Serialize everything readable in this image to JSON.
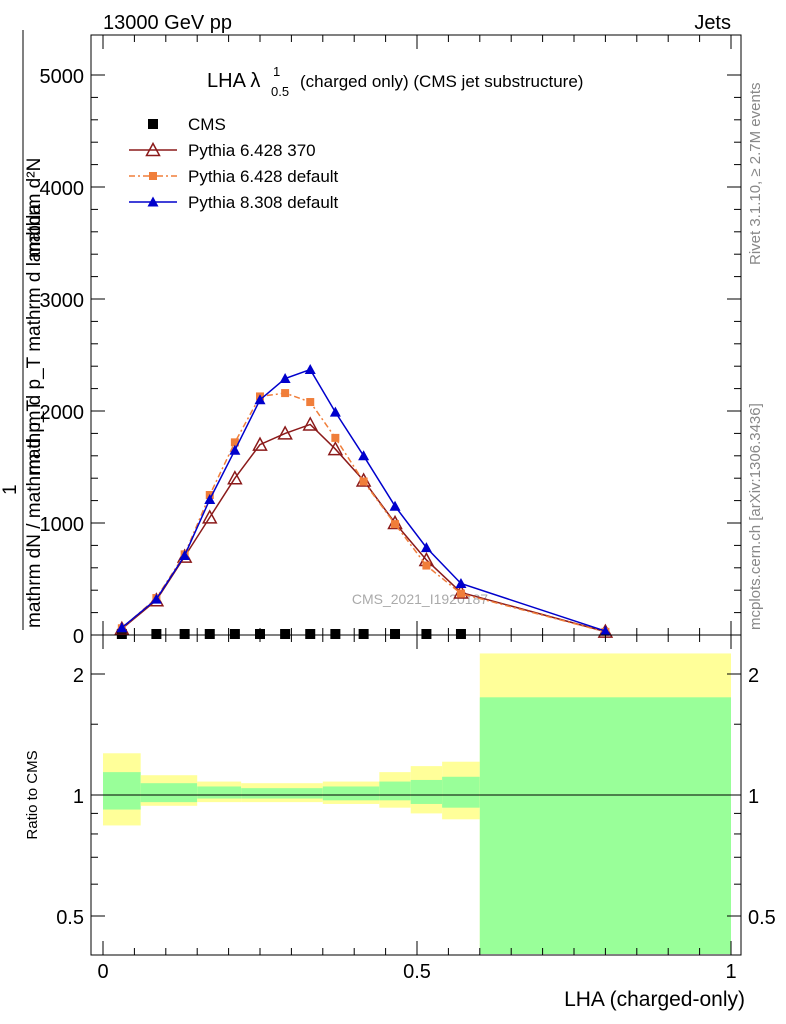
{
  "header": {
    "left": "13000 GeV pp",
    "right": "Jets"
  },
  "side": {
    "rivet": "Rivet 3.1.10, ≥ 2.7M events",
    "mcplots": "mcplots.cern.ch [arXiv:1306.3436]"
  },
  "chart_data": [
    {
      "type": "line",
      "title_main": "LHA λ",
      "title_sup": "1",
      "title_sub": "0.5",
      "title_rest": "(charged only) (CMS jet substructure)",
      "watermark": "CMS_2021_I1920187",
      "ylabel": {
        "num": "mathrm d²N",
        "num_den": "mathrm d p_T mathrm d lambda",
        "one": "1",
        "den": "mathrm dN / mathrm d p_T"
      },
      "xlim": [
        0,
        1
      ],
      "ylim": [
        0,
        5000
      ],
      "y_ticks": [
        0,
        1000,
        2000,
        3000,
        4000,
        5000
      ],
      "x": [
        0.03,
        0.085,
        0.13,
        0.17,
        0.21,
        0.25,
        0.29,
        0.33,
        0.37,
        0.415,
        0.465,
        0.515,
        0.57,
        0.8
      ],
      "legend": {
        "position": "top-left",
        "entries": [
          "CMS",
          "Pythia 6.428 370",
          "Pythia 6.428 default",
          "Pythia 8.308 default"
        ]
      },
      "series": [
        {
          "name": "CMS",
          "color": "#000000",
          "marker": "square",
          "values": [
            0,
            0,
            0,
            0,
            0,
            0,
            0,
            0,
            0,
            0,
            0,
            0,
            0,
            null
          ]
        },
        {
          "name": "Pythia 6.428 370",
          "color": "#8b1a1a",
          "marker": "open-triangle",
          "values": [
            55,
            310,
            700,
            1050,
            1400,
            1700,
            1800,
            1880,
            1660,
            1380,
            1000,
            670,
            380,
            30
          ]
        },
        {
          "name": "Pythia 6.428 default",
          "color": "#f07e3a",
          "marker": "filled-square",
          "values": [
            60,
            330,
            720,
            1250,
            1720,
            2130,
            2160,
            2080,
            1760,
            1370,
            990,
            620,
            370,
            28
          ]
        },
        {
          "name": "Pythia 8.308 default",
          "color": "#0000cc",
          "marker": "filled-triangle",
          "values": [
            65,
            320,
            710,
            1210,
            1650,
            2100,
            2290,
            2370,
            1990,
            1600,
            1150,
            780,
            460,
            35
          ]
        }
      ]
    },
    {
      "type": "area",
      "ylabel": "Ratio to CMS",
      "xlabel": "LHA (charged-only)",
      "xlim": [
        0,
        1
      ],
      "ylim": [
        0.35,
        2.25
      ],
      "y_ticks": [
        0.5,
        1,
        2
      ],
      "x_ticks": [
        0,
        0.5,
        1
      ],
      "bins": [
        {
          "lo": 0.0,
          "hi": 0.06,
          "yellow": [
            0.84,
            1.27
          ],
          "green": [
            0.92,
            1.14
          ]
        },
        {
          "lo": 0.06,
          "hi": 0.15,
          "yellow": [
            0.94,
            1.12
          ],
          "green": [
            0.96,
            1.07
          ]
        },
        {
          "lo": 0.15,
          "hi": 0.22,
          "yellow": [
            0.96,
            1.08
          ],
          "green": [
            0.98,
            1.05
          ]
        },
        {
          "lo": 0.22,
          "hi": 0.35,
          "yellow": [
            0.96,
            1.07
          ],
          "green": [
            0.98,
            1.04
          ]
        },
        {
          "lo": 0.35,
          "hi": 0.44,
          "yellow": [
            0.95,
            1.08
          ],
          "green": [
            0.97,
            1.05
          ]
        },
        {
          "lo": 0.44,
          "hi": 0.49,
          "yellow": [
            0.93,
            1.14
          ],
          "green": [
            0.97,
            1.08
          ]
        },
        {
          "lo": 0.49,
          "hi": 0.54,
          "yellow": [
            0.9,
            1.18
          ],
          "green": [
            0.95,
            1.09
          ]
        },
        {
          "lo": 0.54,
          "hi": 0.6,
          "yellow": [
            0.87,
            1.21
          ],
          "green": [
            0.93,
            1.11
          ]
        },
        {
          "lo": 0.6,
          "hi": 1.0,
          "yellow": [
            0.35,
            2.25
          ],
          "green": [
            0.35,
            1.75
          ]
        }
      ],
      "colors": {
        "yellow": "#ffff99",
        "green": "#99ff99"
      }
    }
  ]
}
